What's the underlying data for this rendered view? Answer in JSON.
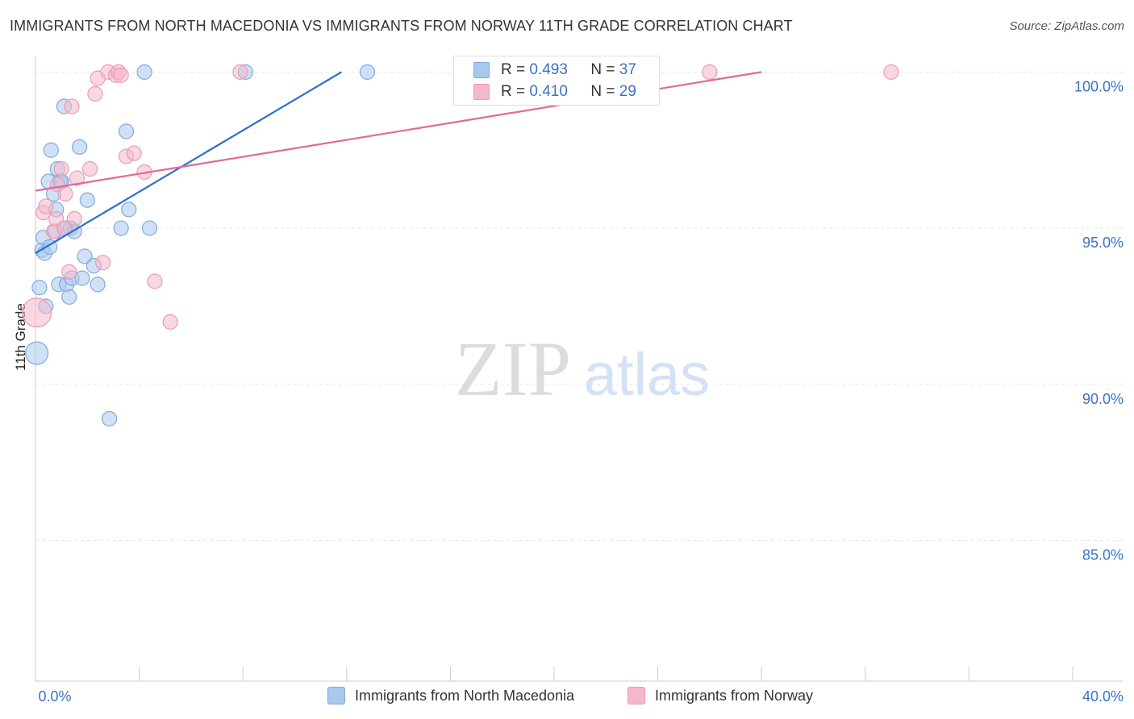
{
  "title": "IMMIGRANTS FROM NORTH MACEDONIA VS IMMIGRANTS FROM NORWAY 11TH GRADE CORRELATION CHART",
  "source": "Source: ZipAtlas.com",
  "watermark": {
    "zip": "ZIP",
    "atlas": "atlas"
  },
  "legend": {
    "r_label": "R =",
    "n_label": "N =",
    "series1": {
      "r": "0.493",
      "n": "37"
    },
    "series2": {
      "r": "0.410",
      "n": "29"
    }
  },
  "colors": {
    "series1_fill": "#a9c8ee",
    "series1_stroke": "#7fa9dd",
    "series1_line": "#2b6fcf",
    "series2_fill": "#f5b8cb",
    "series2_stroke": "#eb9ab3",
    "series2_line": "#e26a93",
    "axis_text": "#3a73c4",
    "grid": "#e6e6e6"
  },
  "chart_data": {
    "type": "scatter",
    "title": "IMMIGRANTS FROM NORTH MACEDONIA VS IMMIGRANTS FROM NORWAY 11TH GRADE CORRELATION CHART",
    "xlabel": "",
    "ylabel": "11th Grade",
    "xlim": [
      0,
      40
    ],
    "ylim": [
      80.5,
      100.5
    ],
    "x_tick_labels": [
      "0.0%",
      "40.0%"
    ],
    "y_ticks": [
      85,
      90,
      95,
      100
    ],
    "y_tick_labels": [
      "85.0%",
      "90.0%",
      "95.0%",
      "100.0%"
    ],
    "grid": true,
    "legend_position": "bottom",
    "series": [
      {
        "name": "Immigrants from North Macedonia",
        "r": 0.493,
        "n": 37,
        "trend": {
          "x": [
            0.0,
            11.8
          ],
          "y": [
            94.2,
            100.0
          ]
        },
        "points": [
          {
            "x": 0.05,
            "y": 91.0,
            "s": 14
          },
          {
            "x": 0.15,
            "y": 93.1,
            "s": 9
          },
          {
            "x": 0.25,
            "y": 94.3,
            "s": 9
          },
          {
            "x": 0.3,
            "y": 94.7,
            "s": 9
          },
          {
            "x": 0.35,
            "y": 94.2,
            "s": 9
          },
          {
            "x": 0.4,
            "y": 92.5,
            "s": 9
          },
          {
            "x": 0.5,
            "y": 96.5,
            "s": 9
          },
          {
            "x": 0.55,
            "y": 94.4,
            "s": 9
          },
          {
            "x": 0.6,
            "y": 97.5,
            "s": 9
          },
          {
            "x": 0.7,
            "y": 96.1,
            "s": 9
          },
          {
            "x": 0.75,
            "y": 94.9,
            "s": 9
          },
          {
            "x": 0.8,
            "y": 95.6,
            "s": 9
          },
          {
            "x": 0.85,
            "y": 96.9,
            "s": 9
          },
          {
            "x": 0.9,
            "y": 93.2,
            "s": 9
          },
          {
            "x": 0.95,
            "y": 96.5,
            "s": 9
          },
          {
            "x": 1.0,
            "y": 96.5,
            "s": 9
          },
          {
            "x": 1.1,
            "y": 98.9,
            "s": 9
          },
          {
            "x": 1.15,
            "y": 95.0,
            "s": 9
          },
          {
            "x": 1.2,
            "y": 93.2,
            "s": 9
          },
          {
            "x": 1.3,
            "y": 92.8,
            "s": 9
          },
          {
            "x": 1.35,
            "y": 95.0,
            "s": 9
          },
          {
            "x": 1.4,
            "y": 93.4,
            "s": 9
          },
          {
            "x": 1.5,
            "y": 94.9,
            "s": 9
          },
          {
            "x": 1.7,
            "y": 97.6,
            "s": 9
          },
          {
            "x": 1.8,
            "y": 93.4,
            "s": 9
          },
          {
            "x": 1.9,
            "y": 94.1,
            "s": 9
          },
          {
            "x": 2.0,
            "y": 95.9,
            "s": 9
          },
          {
            "x": 2.25,
            "y": 93.8,
            "s": 9
          },
          {
            "x": 2.4,
            "y": 93.2,
            "s": 9
          },
          {
            "x": 2.85,
            "y": 88.9,
            "s": 9
          },
          {
            "x": 3.3,
            "y": 95.0,
            "s": 9
          },
          {
            "x": 3.5,
            "y": 98.1,
            "s": 9
          },
          {
            "x": 3.6,
            "y": 95.6,
            "s": 9
          },
          {
            "x": 4.2,
            "y": 100.0,
            "s": 9
          },
          {
            "x": 4.4,
            "y": 95.0,
            "s": 9
          },
          {
            "x": 8.1,
            "y": 100.0,
            "s": 9
          },
          {
            "x": 12.8,
            "y": 100.0,
            "s": 9
          }
        ]
      },
      {
        "name": "Immigrants from Norway",
        "r": 0.41,
        "n": 29,
        "trend": {
          "x": [
            0.0,
            28.0
          ],
          "y": [
            96.2,
            100.0
          ]
        },
        "points": [
          {
            "x": 0.05,
            "y": 92.3,
            "s": 18
          },
          {
            "x": 0.3,
            "y": 95.5,
            "s": 9
          },
          {
            "x": 0.4,
            "y": 95.7,
            "s": 9
          },
          {
            "x": 0.7,
            "y": 94.9,
            "s": 9
          },
          {
            "x": 0.8,
            "y": 95.3,
            "s": 9
          },
          {
            "x": 0.85,
            "y": 96.4,
            "s": 9
          },
          {
            "x": 1.0,
            "y": 96.9,
            "s": 9
          },
          {
            "x": 1.1,
            "y": 95.0,
            "s": 9
          },
          {
            "x": 1.15,
            "y": 96.1,
            "s": 9
          },
          {
            "x": 1.3,
            "y": 93.6,
            "s": 9
          },
          {
            "x": 1.4,
            "y": 98.9,
            "s": 9
          },
          {
            "x": 1.5,
            "y": 95.3,
            "s": 9
          },
          {
            "x": 1.6,
            "y": 96.6,
            "s": 9
          },
          {
            "x": 2.1,
            "y": 96.9,
            "s": 9
          },
          {
            "x": 2.3,
            "y": 99.3,
            "s": 9
          },
          {
            "x": 2.4,
            "y": 99.8,
            "s": 9
          },
          {
            "x": 2.6,
            "y": 93.9,
            "s": 9
          },
          {
            "x": 2.8,
            "y": 100.0,
            "s": 9
          },
          {
            "x": 3.1,
            "y": 99.9,
            "s": 9
          },
          {
            "x": 3.2,
            "y": 100.0,
            "s": 9
          },
          {
            "x": 3.3,
            "y": 99.9,
            "s": 9
          },
          {
            "x": 3.5,
            "y": 97.3,
            "s": 9
          },
          {
            "x": 3.8,
            "y": 97.4,
            "s": 9
          },
          {
            "x": 4.2,
            "y": 96.8,
            "s": 9
          },
          {
            "x": 4.6,
            "y": 93.3,
            "s": 9
          },
          {
            "x": 5.2,
            "y": 92.0,
            "s": 9
          },
          {
            "x": 7.9,
            "y": 100.0,
            "s": 9
          },
          {
            "x": 26.0,
            "y": 100.0,
            "s": 9
          },
          {
            "x": 33.0,
            "y": 100.0,
            "s": 9
          }
        ]
      }
    ]
  }
}
